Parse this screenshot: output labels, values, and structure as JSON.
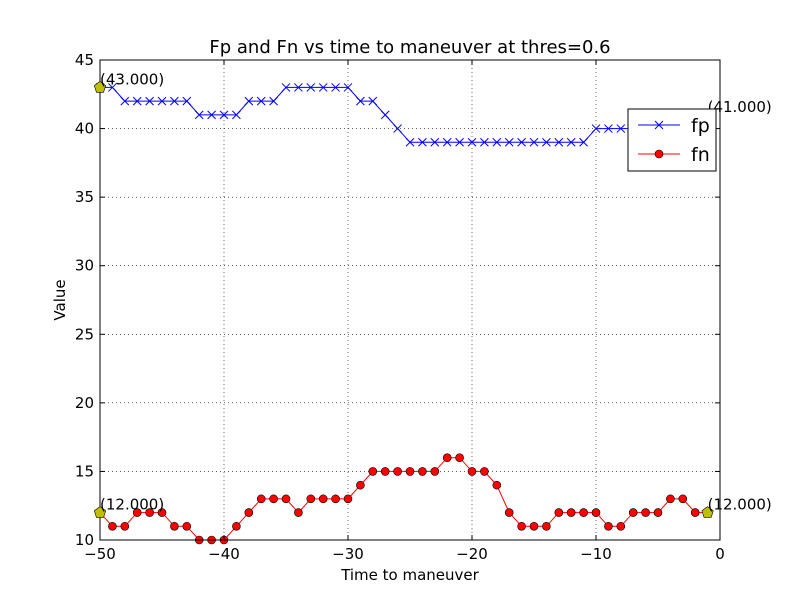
{
  "chart_data": {
    "type": "line",
    "title": "Fp and Fn vs time to maneuver at thres=0.6",
    "xlabel": "Time to maneuver",
    "ylabel": "Value",
    "xlim": [
      -50,
      0
    ],
    "ylim": [
      10,
      45
    ],
    "xticks": [
      -50,
      -40,
      -30,
      -20,
      -10,
      0
    ],
    "xtick_labels": [
      "−50",
      "−40",
      "−30",
      "−20",
      "−10",
      "0"
    ],
    "yticks": [
      10,
      15,
      20,
      25,
      30,
      35,
      40,
      45
    ],
    "ytick_labels": [
      "10",
      "15",
      "20",
      "25",
      "30",
      "35",
      "40",
      "45"
    ],
    "grid": true,
    "legend": "top-right",
    "x": [
      -50,
      -49,
      -48,
      -47,
      -46,
      -45,
      -44,
      -43,
      -42,
      -41,
      -40,
      -39,
      -38,
      -37,
      -36,
      -35,
      -34,
      -33,
      -32,
      -31,
      -30,
      -29,
      -28,
      -27,
      -26,
      -25,
      -24,
      -23,
      -22,
      -21,
      -20,
      -19,
      -18,
      -17,
      -16,
      -15,
      -14,
      -13,
      -12,
      -11,
      -10,
      -9,
      -8,
      -7,
      -6,
      -5,
      -4,
      -3,
      -2,
      -1
    ],
    "series": [
      {
        "name": "fp",
        "color": "#0000ff",
        "marker": "x",
        "values": [
          43,
          43,
          42,
          42,
          42,
          42,
          42,
          42,
          41,
          41,
          41,
          41,
          42,
          42,
          42,
          43,
          43,
          43,
          43,
          43,
          43,
          42,
          42,
          41,
          40,
          39,
          39,
          39,
          39,
          39,
          39,
          39,
          39,
          39,
          39,
          39,
          39,
          39,
          39,
          39,
          40,
          40,
          40,
          40,
          40,
          40,
          40,
          40,
          40,
          41
        ]
      },
      {
        "name": "fn",
        "color": "#ff0000",
        "marker": "o",
        "values": [
          12,
          11,
          11,
          12,
          12,
          12,
          11,
          11,
          10,
          10,
          10,
          11,
          12,
          13,
          13,
          13,
          12,
          13,
          13,
          13,
          13,
          14,
          15,
          15,
          15,
          15,
          15,
          15,
          16,
          16,
          15,
          15,
          14,
          12,
          11,
          11,
          11,
          12,
          12,
          12,
          12,
          11,
          11,
          12,
          12,
          12,
          13,
          13,
          12,
          12
        ]
      }
    ],
    "highlight_markers": [
      {
        "x": -50,
        "y": 43,
        "color": "#bfbf00",
        "label": "(43.000)"
      },
      {
        "x": -1,
        "y": 41,
        "color": "#bfbf00",
        "label": "(41.000)"
      },
      {
        "x": -50,
        "y": 12,
        "color": "#bfbf00",
        "label": "(12.000)"
      },
      {
        "x": -1,
        "y": 12,
        "color": "#bfbf00",
        "label": "(12.000)"
      }
    ]
  }
}
